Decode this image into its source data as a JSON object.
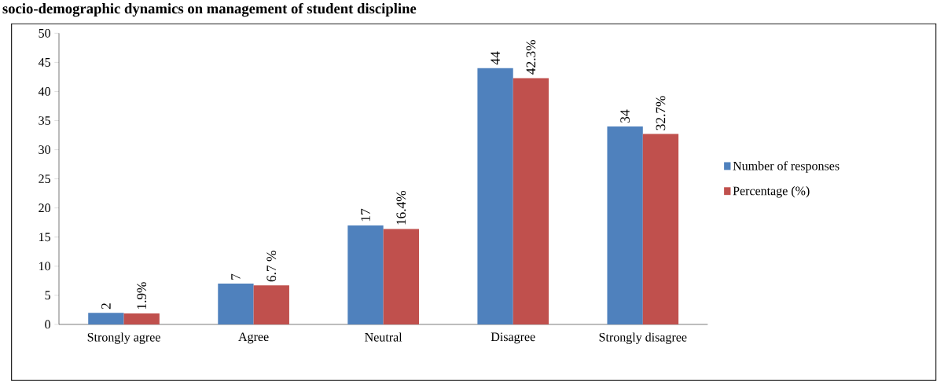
{
  "chart_data": {
    "type": "bar",
    "title": "socio-demographic dynamics on management of student discipline",
    "categories": [
      "Strongly agree",
      "Agree",
      "Neutral",
      "Disagree",
      "Strongly disagree"
    ],
    "series": [
      {
        "name": "Number of responses",
        "color": "#4f81bd",
        "values": [
          2,
          7,
          17,
          44,
          34
        ],
        "value_labels": [
          "2",
          "7",
          "17",
          "44",
          "34"
        ]
      },
      {
        "name": "Percentage (%)",
        "color": "#c0504d",
        "values": [
          1.9,
          6.7,
          16.4,
          42.3,
          32.7
        ],
        "value_labels": [
          "1.9%",
          "6.7 %",
          "16.4%",
          "42.3%",
          "32.7%"
        ]
      }
    ],
    "ylim": [
      0,
      50
    ],
    "yticks": [
      0,
      5,
      10,
      15,
      20,
      25,
      30,
      35,
      40,
      45,
      50
    ],
    "legend": "right",
    "grid": false
  }
}
